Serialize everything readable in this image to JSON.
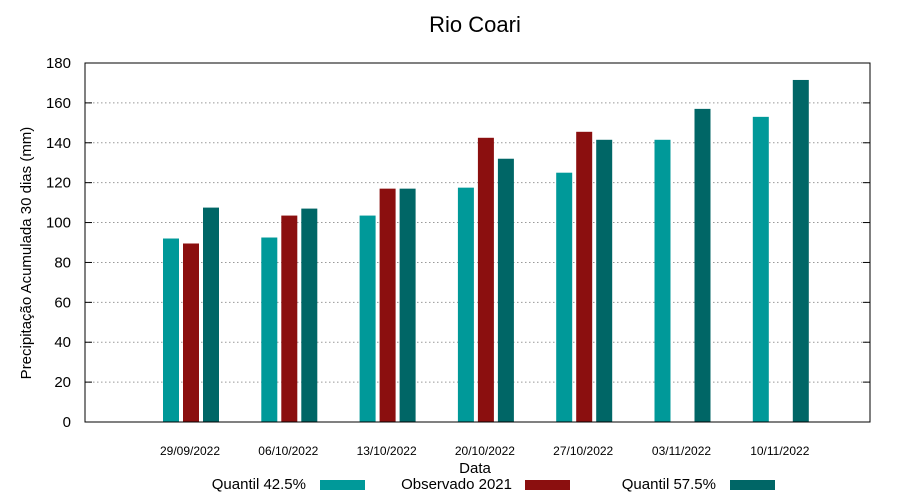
{
  "chart_data": {
    "type": "bar",
    "title": "Rio Coari",
    "xlabel": "Data",
    "ylabel": "Precipitação Acumulada 30 dias (mm)",
    "ylim": [
      0,
      180
    ],
    "yticks": [
      0,
      20,
      40,
      60,
      80,
      100,
      120,
      140,
      160,
      180
    ],
    "grid": true,
    "legend_position": "bottom",
    "categories": [
      "29/09/2022",
      "06/10/2022",
      "13/10/2022",
      "20/10/2022",
      "27/10/2022",
      "03/11/2022",
      "10/11/2022"
    ],
    "series": [
      {
        "name": "Quantil 42.5%",
        "color": "#009999",
        "values": [
          92,
          92.5,
          103.5,
          117.5,
          125,
          141.5,
          153
        ]
      },
      {
        "name": "Observado 2021",
        "color": "#8b0f0f",
        "values": [
          89.5,
          103.5,
          117,
          142.5,
          145.5,
          null,
          null
        ]
      },
      {
        "name": "Quantil 57.5%",
        "color": "#006666",
        "values": [
          107.5,
          107,
          117,
          132,
          141.5,
          157,
          171.5
        ]
      }
    ]
  }
}
